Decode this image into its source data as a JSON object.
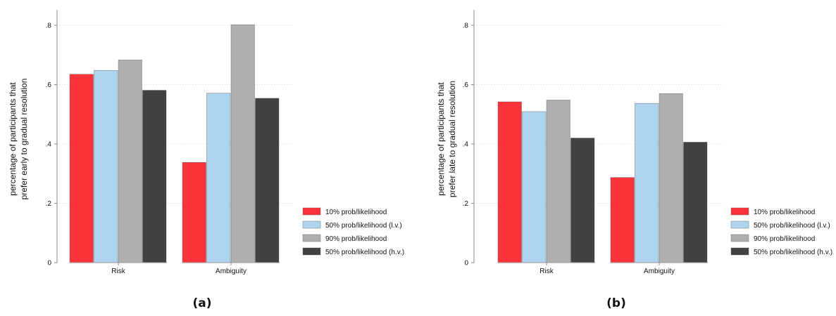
{
  "colors": {
    "red": "#fc333b",
    "lightblue": "#aed4ee",
    "gray": "#b0b0b0",
    "dark": "#424242",
    "grid": "#e3e3e3",
    "axis": "#888888"
  },
  "chart_data": [
    {
      "type": "bar",
      "caption": "(a)",
      "ylabel": [
        "percentage of participants that",
        "prefer early to gradual resolution"
      ],
      "categories": [
        "Risk",
        "Ambiguity"
      ],
      "ylim": [
        0,
        0.85
      ],
      "yticks": [
        0,
        0.2,
        0.4,
        0.6,
        0.8
      ],
      "yticklabels": [
        "0",
        ".2",
        ".4",
        ".6",
        ".8"
      ],
      "grid": true,
      "legend_position": "right",
      "series": [
        {
          "name": "10% prob/likelihood",
          "color": "#fc333b",
          "values": [
            0.635,
            0.338
          ]
        },
        {
          "name": "50% prob/likelihood (l.v.)",
          "color": "#aed4ee",
          "values": [
            0.648,
            0.571
          ]
        },
        {
          "name": "90% prob/likelihood",
          "color": "#b0b0b0",
          "values": [
            0.683,
            0.802
          ]
        },
        {
          "name": "50% prob/likelihood (h.v.)",
          "color": "#424242",
          "values": [
            0.581,
            0.554
          ]
        }
      ]
    },
    {
      "type": "bar",
      "caption": "(b)",
      "ylabel": [
        "percentage of participants that",
        "prefer late to gradual resolution"
      ],
      "categories": [
        "Risk",
        "Ambiguity"
      ],
      "ylim": [
        0,
        0.85
      ],
      "yticks": [
        0,
        0.2,
        0.4,
        0.6,
        0.8
      ],
      "yticklabels": [
        "0",
        ".2",
        ".4",
        ".6",
        ".8"
      ],
      "grid": true,
      "legend_position": "right",
      "series": [
        {
          "name": "10% prob/likelihood",
          "color": "#fc333b",
          "values": [
            0.542,
            0.287
          ]
        },
        {
          "name": "50% prob/likelihood (l.v.)",
          "color": "#aed4ee",
          "values": [
            0.509,
            0.537
          ]
        },
        {
          "name": "90% prob/likelihood",
          "color": "#b0b0b0",
          "values": [
            0.548,
            0.57
          ]
        },
        {
          "name": "50% prob/likelihood (h.v.)",
          "color": "#424242",
          "values": [
            0.42,
            0.406
          ]
        }
      ]
    }
  ]
}
